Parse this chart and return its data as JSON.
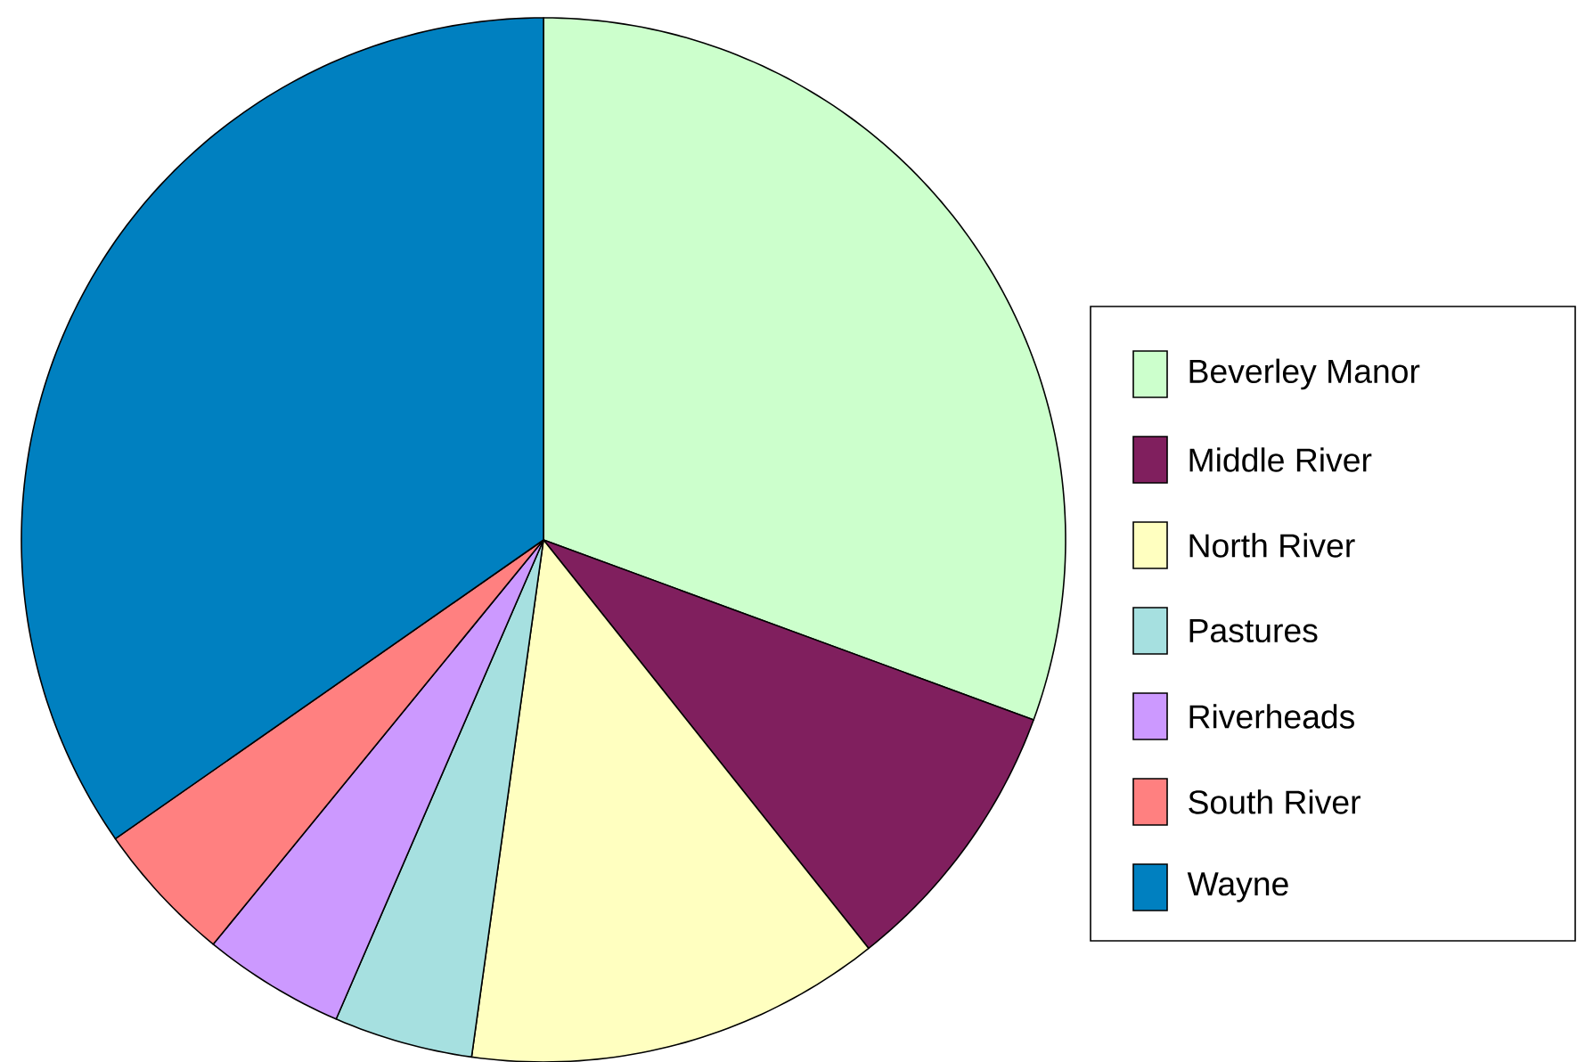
{
  "chart_data": {
    "type": "pie",
    "categories": [
      "Beverley Manor",
      "Middle River",
      "North River",
      "Pastures",
      "Riverheads",
      "South River",
      "Wayne"
    ],
    "values": [
      30.6,
      8.7,
      12.9,
      4.3,
      4.4,
      4.4,
      34.7
    ],
    "colors": [
      "#ccffcc",
      "#801f5e",
      "#ffffc0",
      "#a6e0e0",
      "#cc99ff",
      "#ff8080",
      "#0080c0"
    ],
    "legend": "right"
  }
}
